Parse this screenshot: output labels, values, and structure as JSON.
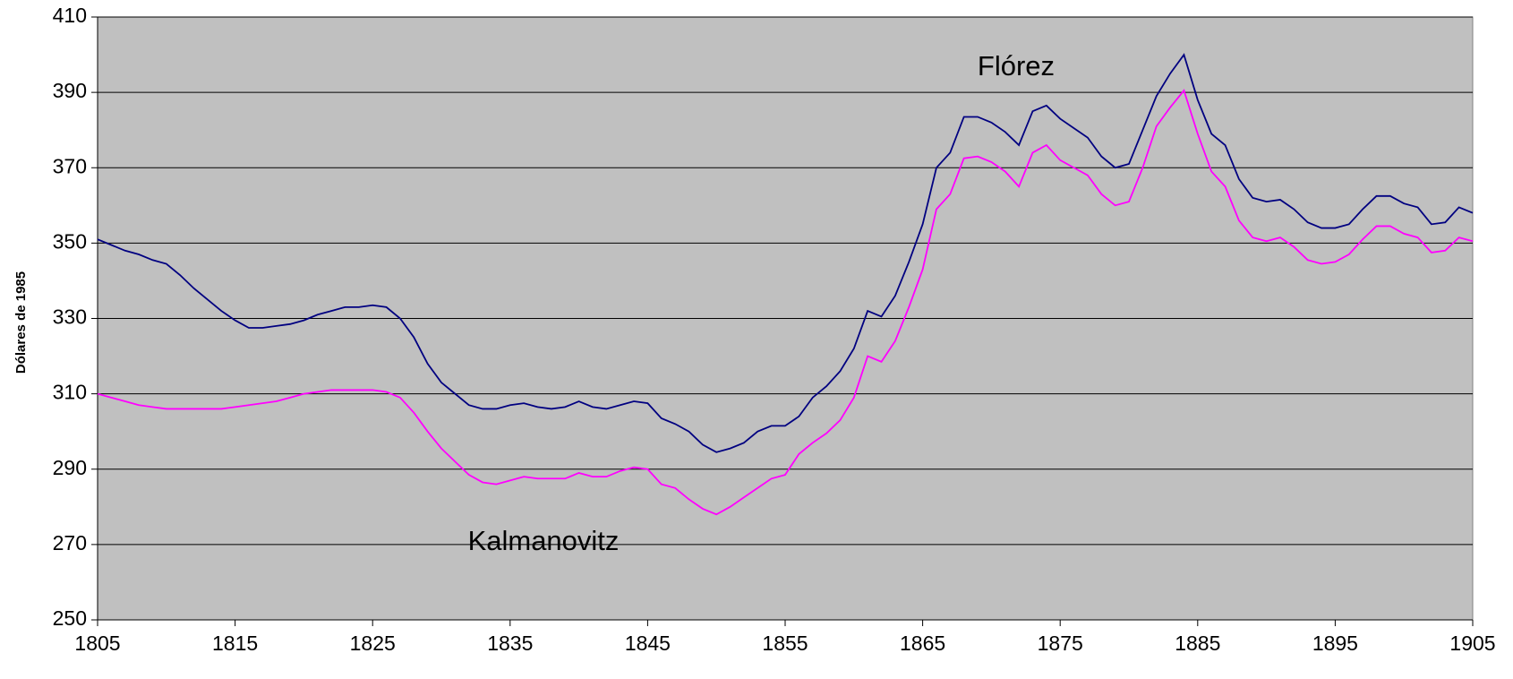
{
  "chart_data": {
    "type": "line",
    "y_label": "Dólares de 1985",
    "x": [
      1805,
      1806,
      1807,
      1808,
      1809,
      1810,
      1811,
      1812,
      1813,
      1814,
      1815,
      1816,
      1817,
      1818,
      1819,
      1820,
      1821,
      1822,
      1823,
      1824,
      1825,
      1826,
      1827,
      1828,
      1829,
      1830,
      1831,
      1832,
      1833,
      1834,
      1835,
      1836,
      1837,
      1838,
      1839,
      1840,
      1841,
      1842,
      1843,
      1844,
      1845,
      1846,
      1847,
      1848,
      1849,
      1850,
      1851,
      1852,
      1853,
      1854,
      1855,
      1856,
      1857,
      1858,
      1859,
      1860,
      1861,
      1862,
      1863,
      1864,
      1865,
      1866,
      1867,
      1868,
      1869,
      1870,
      1871,
      1872,
      1873,
      1874,
      1875,
      1876,
      1877,
      1878,
      1879,
      1880,
      1881,
      1882,
      1883,
      1884,
      1885,
      1886,
      1887,
      1888,
      1889,
      1890,
      1891,
      1892,
      1893,
      1894,
      1895,
      1896,
      1897,
      1898,
      1899,
      1900,
      1901,
      1902,
      1903,
      1904,
      1905
    ],
    "series": [
      {
        "name": "Flórez",
        "color": "#000080",
        "values": [
          351,
          349.5,
          348,
          347,
          345.5,
          344.5,
          341.5,
          338,
          335,
          332,
          329.5,
          327.5,
          327.5,
          328,
          328.5,
          329.5,
          331,
          332,
          333,
          333,
          333.5,
          333,
          330,
          325,
          318,
          313,
          310,
          307,
          306,
          306,
          307,
          307.5,
          306.5,
          306,
          306.5,
          308,
          306.5,
          306,
          307,
          308,
          307.5,
          303.5,
          302,
          300,
          296.5,
          294.5,
          295.5,
          297,
          300,
          301.5,
          301.5,
          304,
          309,
          312,
          316,
          322,
          332,
          330.5,
          336,
          345,
          355,
          370,
          374,
          383.5,
          383.5,
          382,
          379.5,
          376,
          385,
          386.5,
          383,
          380.5,
          378,
          373,
          370,
          371,
          380,
          389,
          395,
          400,
          388,
          379,
          376,
          367,
          362,
          361,
          361.5,
          359,
          355.5,
          354,
          354,
          355,
          359,
          362.5,
          362.5,
          360.5,
          359.5,
          355,
          355.5,
          359.5,
          358
        ]
      },
      {
        "name": "Kalmanovitz",
        "color": "#ff00ff",
        "values": [
          310,
          309,
          308,
          307,
          306.5,
          306,
          306,
          306,
          306,
          306,
          306.5,
          307,
          307.5,
          308,
          309,
          310,
          310.5,
          311,
          311,
          311,
          311,
          310.5,
          309,
          305,
          300,
          295.5,
          292,
          288.5,
          286.5,
          286,
          287,
          288,
          287.5,
          287.5,
          287.5,
          289,
          288,
          288,
          289.5,
          290.5,
          290,
          286,
          285,
          282,
          279.5,
          278,
          280,
          282.5,
          285,
          287.5,
          288.5,
          294,
          297,
          299.5,
          303,
          309,
          320,
          318.5,
          324,
          333,
          343,
          359,
          363,
          372.5,
          373,
          371.5,
          369,
          365,
          374,
          376,
          372,
          370,
          368,
          363,
          360,
          361,
          370,
          381,
          386,
          390.5,
          379,
          369,
          365,
          356,
          351.5,
          350.5,
          351.5,
          349,
          345.5,
          344.5,
          345,
          347,
          351,
          354.5,
          354.5,
          352.5,
          351.5,
          347.5,
          348,
          351.5,
          350.5
        ]
      }
    ],
    "xlim": [
      1805,
      1905
    ],
    "xticks": [
      1805,
      1815,
      1825,
      1835,
      1845,
      1855,
      1865,
      1875,
      1885,
      1895,
      1905
    ],
    "ylim": [
      250,
      410
    ],
    "yticks": [
      250,
      270,
      290,
      310,
      330,
      350,
      370,
      390,
      410
    ],
    "grid": true,
    "background": "#c0c0c0"
  }
}
